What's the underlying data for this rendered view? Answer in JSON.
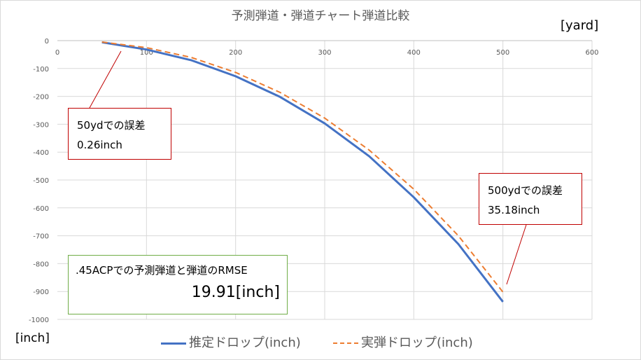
{
  "chart_data": {
    "type": "line",
    "title": "予測弾道・弾道チャート弾道比較",
    "x_unit": "[yard]",
    "y_unit": "[inch]",
    "xlim": [
      0,
      600
    ],
    "ylim": [
      -1000,
      0
    ],
    "x_ticks": [
      "0",
      "100",
      "200",
      "300",
      "400",
      "500",
      "600"
    ],
    "y_ticks": [
      "0",
      "-100",
      "-200",
      "-300",
      "-400",
      "-500",
      "-600",
      "-700",
      "-800",
      "-900",
      "-1000"
    ],
    "grid": true,
    "legend_position": "bottom",
    "x": [
      50,
      100,
      150,
      200,
      250,
      300,
      350,
      400,
      450,
      500
    ],
    "series": [
      {
        "name": "推定ドロップ(inch)",
        "color": "#4472c4",
        "style": "solid",
        "values": [
          -6,
          -32,
          -70,
          -128,
          -202,
          -297,
          -415,
          -562,
          -730,
          -937
        ]
      },
      {
        "name": "実弾ドロップ(inch)",
        "color": "#ed7d31",
        "style": "dashed",
        "values": [
          -5,
          -25,
          -60,
          -114,
          -186,
          -278,
          -393,
          -533,
          -700,
          -902
        ]
      }
    ]
  },
  "callouts": [
    {
      "line1": "50ydでの誤差",
      "line2": "0.26inch",
      "color": "#c00000"
    },
    {
      "line1": "500ydでの誤差",
      "line2": "35.18inch",
      "color": "#c00000"
    }
  ],
  "rmse": {
    "label": ".45ACPでの予測弾道と弾道のRMSE",
    "value": "19.91[inch]",
    "border_color": "#70ad47"
  }
}
